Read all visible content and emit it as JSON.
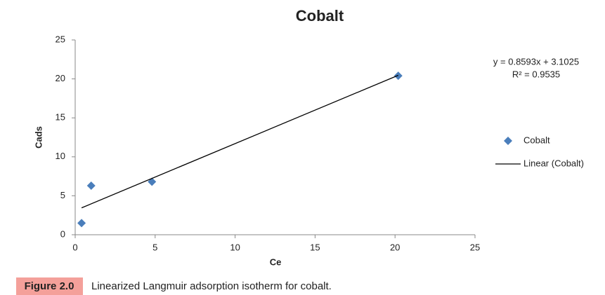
{
  "chart_data": {
    "type": "scatter",
    "title": "Cobalt",
    "x_label": "Ce",
    "y_label": "Cads",
    "xlim": [
      0,
      25
    ],
    "xticks": [
      0,
      5,
      10,
      15,
      20,
      25
    ],
    "ylim": [
      0,
      25
    ],
    "yticks": [
      0,
      5,
      10,
      15,
      20,
      25
    ],
    "grid": false,
    "legend": "right",
    "series": [
      {
        "name": "Cobalt",
        "color": "#4a7ebb",
        "mode": "markers",
        "x": [
          0.4,
          1.0,
          4.8,
          20.2
        ],
        "values": [
          1.5,
          6.3,
          6.8,
          20.4
        ]
      },
      {
        "name": "Linear (Cobalt)",
        "color": "#000000",
        "mode": "line",
        "x": [
          0.4,
          20.2
        ],
        "values": [
          3.45,
          20.46
        ]
      }
    ],
    "annotations": [
      "y = 0.8593x + 3.1025",
      "R² = 0.9535"
    ]
  },
  "figure_caption": {
    "label": "Figure 2.0",
    "text": "Linearized Langmuir adsorption isotherm for cobalt."
  }
}
